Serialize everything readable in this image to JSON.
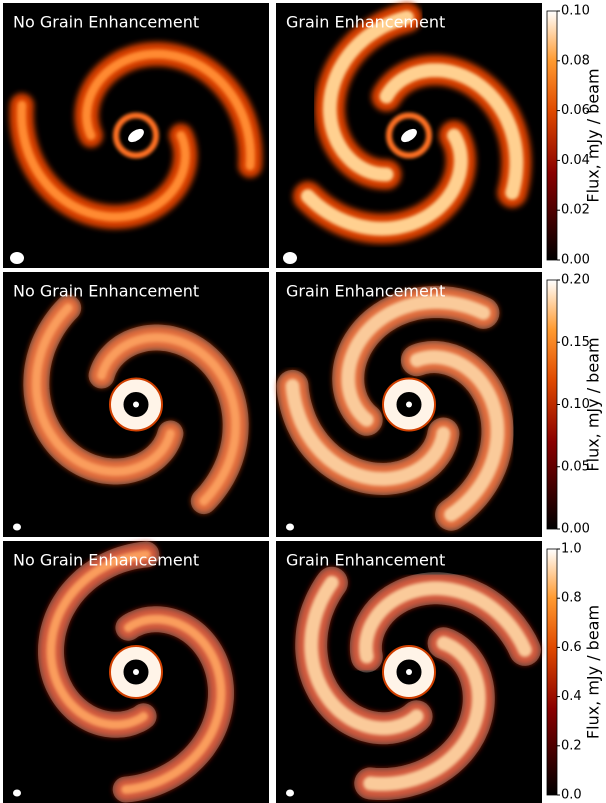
{
  "chart_data": [
    {
      "type": "image",
      "panel_titles": [
        "No Grain Enhancement",
        "Grain Enhancement"
      ],
      "colorbar": {
        "label": "Flux, mJy / beam",
        "lim": [
          0,
          0.1
        ],
        "ticks": [
          {
            "value": 0,
            "label": "0.00"
          },
          0.02,
          0.04,
          0.06,
          0.08,
          {
            "value": 0.1,
            "label": "0.10"
          }
        ]
      }
    },
    {
      "type": "image",
      "panel_titles": [
        "No Grain Enhancement",
        "Grain Enhancement"
      ],
      "colorbar": {
        "label": "Flux, mJy / beam",
        "lim": [
          0,
          0.2
        ],
        "ticks": [
          {
            "value": 0,
            "label": "0.00"
          },
          0.05,
          {
            "value": 0.1,
            "label": "0.10"
          },
          0.15,
          {
            "value": 0.2,
            "label": "0.20"
          }
        ]
      }
    },
    {
      "type": "image",
      "panel_titles": [
        "No Grain Enhancement",
        "Grain Enhancement"
      ],
      "colorbar": {
        "label": "Flux, mJy / beam",
        "lim": [
          0,
          1
        ],
        "ticks": [
          {
            "value": 0,
            "label": "0.0"
          },
          0.2,
          0.4,
          0.6,
          0.8,
          {
            "value": 1,
            "label": "1.0"
          }
        ]
      }
    }
  ]
}
